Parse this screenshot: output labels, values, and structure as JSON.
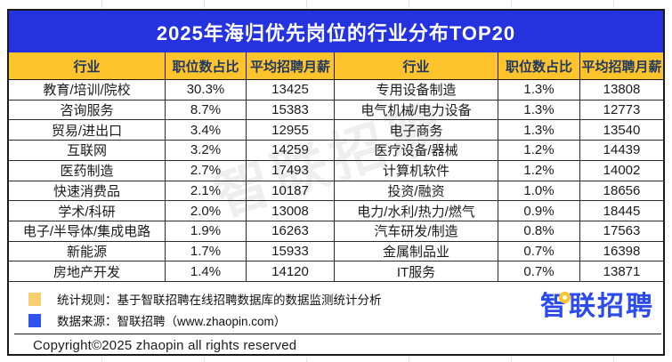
{
  "chart_data": {
    "type": "table",
    "title": "2025年海归优先岗位的行业分布TOP20",
    "columns": [
      "行业",
      "职位数占比",
      "平均招聘月薪"
    ],
    "layout": "split two halves: rows 0-9 in left block, rows 10-19 in right block",
    "rows": [
      [
        "教育/培训/院校",
        "30.3%",
        "13425"
      ],
      [
        "咨询服务",
        "8.7%",
        "15383"
      ],
      [
        "贸易/进出口",
        "3.4%",
        "12955"
      ],
      [
        "互联网",
        "3.2%",
        "14259"
      ],
      [
        "医药制造",
        "2.7%",
        "17493"
      ],
      [
        "快速消费品",
        "2.1%",
        "10187"
      ],
      [
        "学术/科研",
        "2.0%",
        "13008"
      ],
      [
        "电子/半导体/集成电路",
        "1.9%",
        "16263"
      ],
      [
        "新能源",
        "1.7%",
        "15933"
      ],
      [
        "房地产开发",
        "1.4%",
        "14120"
      ],
      [
        "专用设备制造",
        "1.3%",
        "13808"
      ],
      [
        "电气机械/电力设备",
        "1.3%",
        "12773"
      ],
      [
        "电子商务",
        "1.3%",
        "13540"
      ],
      [
        "医疗设备/器械",
        "1.2%",
        "14439"
      ],
      [
        "计算机软件",
        "1.2%",
        "14002"
      ],
      [
        "投资/融资",
        "1.0%",
        "18656"
      ],
      [
        "电力/水利/热力/燃气",
        "0.9%",
        "18445"
      ],
      [
        "汽车研发/制造",
        "0.8%",
        "17563"
      ],
      [
        "金属制品业",
        "0.7%",
        "16398"
      ],
      [
        "IT服务",
        "0.7%",
        "13871"
      ]
    ]
  },
  "header": {
    "title": "2025年海归优先岗位的行业分布TOP20"
  },
  "table_headers": [
    "行业",
    "职位数占比",
    "平均招聘月薪",
    "行业",
    "职位数占比",
    "平均招聘月薪"
  ],
  "footnotes": [
    {
      "text": "统计规则：基于智联招聘在线招聘数据库的数据监测统计分析",
      "marker": "#F8CF6F"
    },
    {
      "text": "数据来源：智联招聘（www.zhaopin.com）",
      "marker": "#2E53F0"
    }
  ],
  "copyright": "Copyright©2025 zhaopin all rights reserved",
  "logo": {
    "text": "智联招聘"
  },
  "watermark": "智联招聘",
  "colors": {
    "title_bg": "#2433DF",
    "title_text": "#FFFFFF",
    "header_bg": "#FFC32C",
    "header_text": "#1F3864",
    "border": "#1A1A1A",
    "note_marker_yellow": "#F8CF6F",
    "note_marker_blue": "#2E53F0",
    "logo_blue": "#2B4AF0",
    "logo_dot_yellow": "#FFC32C"
  }
}
